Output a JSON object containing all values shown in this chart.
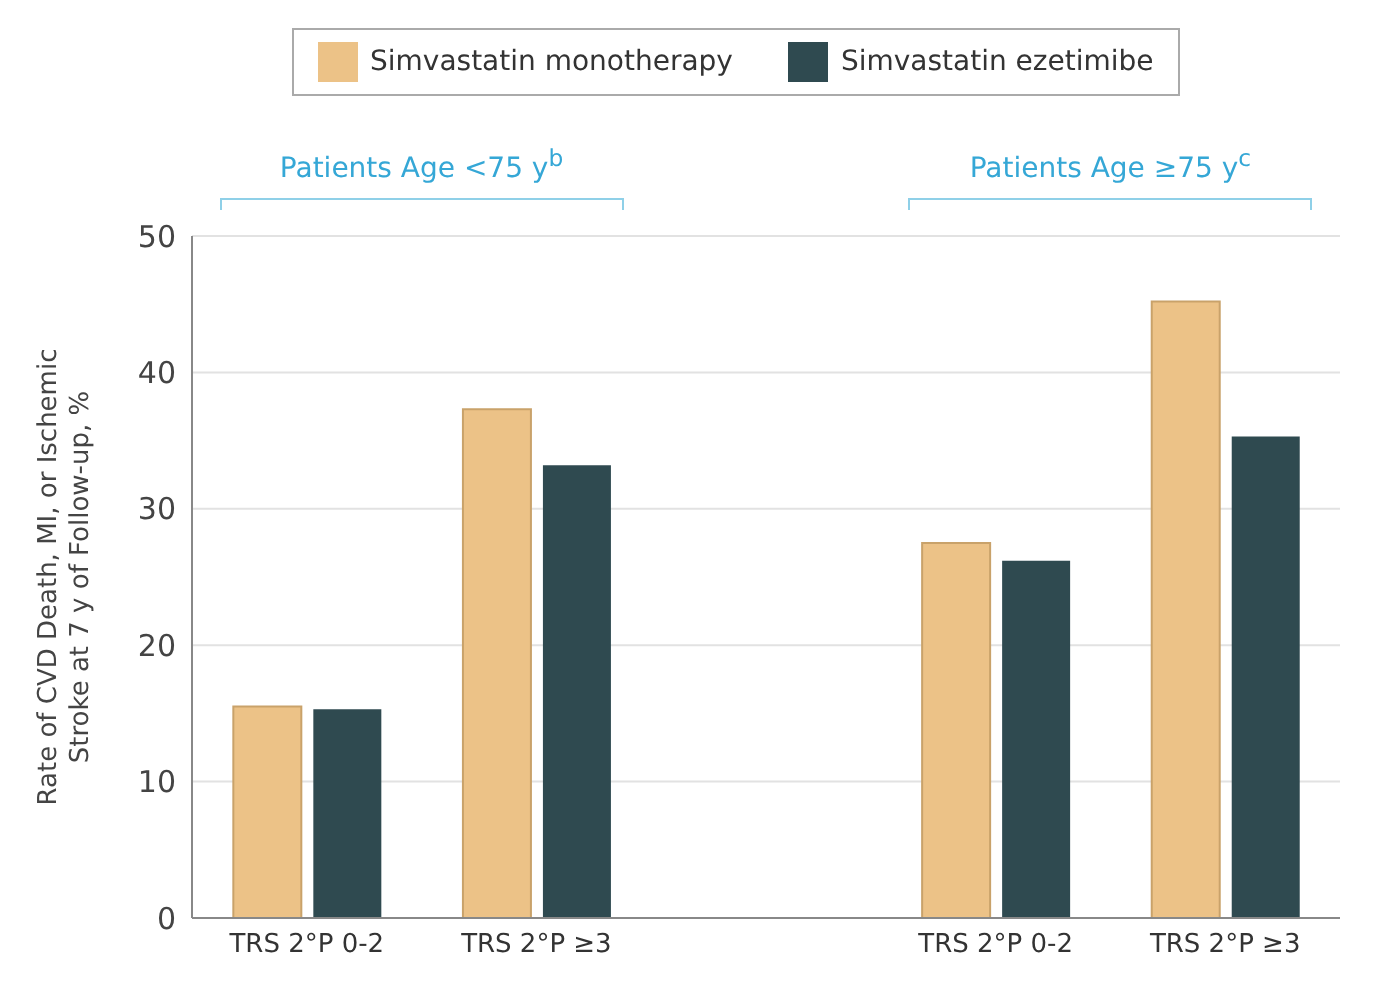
{
  "chart_data": {
    "type": "bar",
    "categories": [
      "TRS 2°P 0-2",
      "TRS 2°P ≥3",
      null,
      "TRS 2°P 0-2",
      "TRS 2°P ≥3"
    ],
    "series": [
      {
        "name": "Simvastatin monotherapy",
        "color": "#ecc287",
        "values": [
          15.5,
          37.3,
          null,
          27.5,
          45.2
        ]
      },
      {
        "name": "Simvastatin ezetimibe",
        "color": "#2f4a50",
        "values": [
          15.3,
          33.2,
          null,
          26.2,
          35.3
        ]
      }
    ],
    "ylabel": "Rate of CVD Death, MI, or Ischemic Stroke at 7 y of Follow-up, %",
    "annotations": [
      "Patients Age <75 y$^{b}$",
      "Patients Age ≥75 y$^{c}$"
    ],
    "ylim": [
      0,
      50
    ],
    "yticks": [
      0,
      10,
      20,
      30,
      40,
      50
    ],
    "grid": "y",
    "legend": "top"
  }
}
